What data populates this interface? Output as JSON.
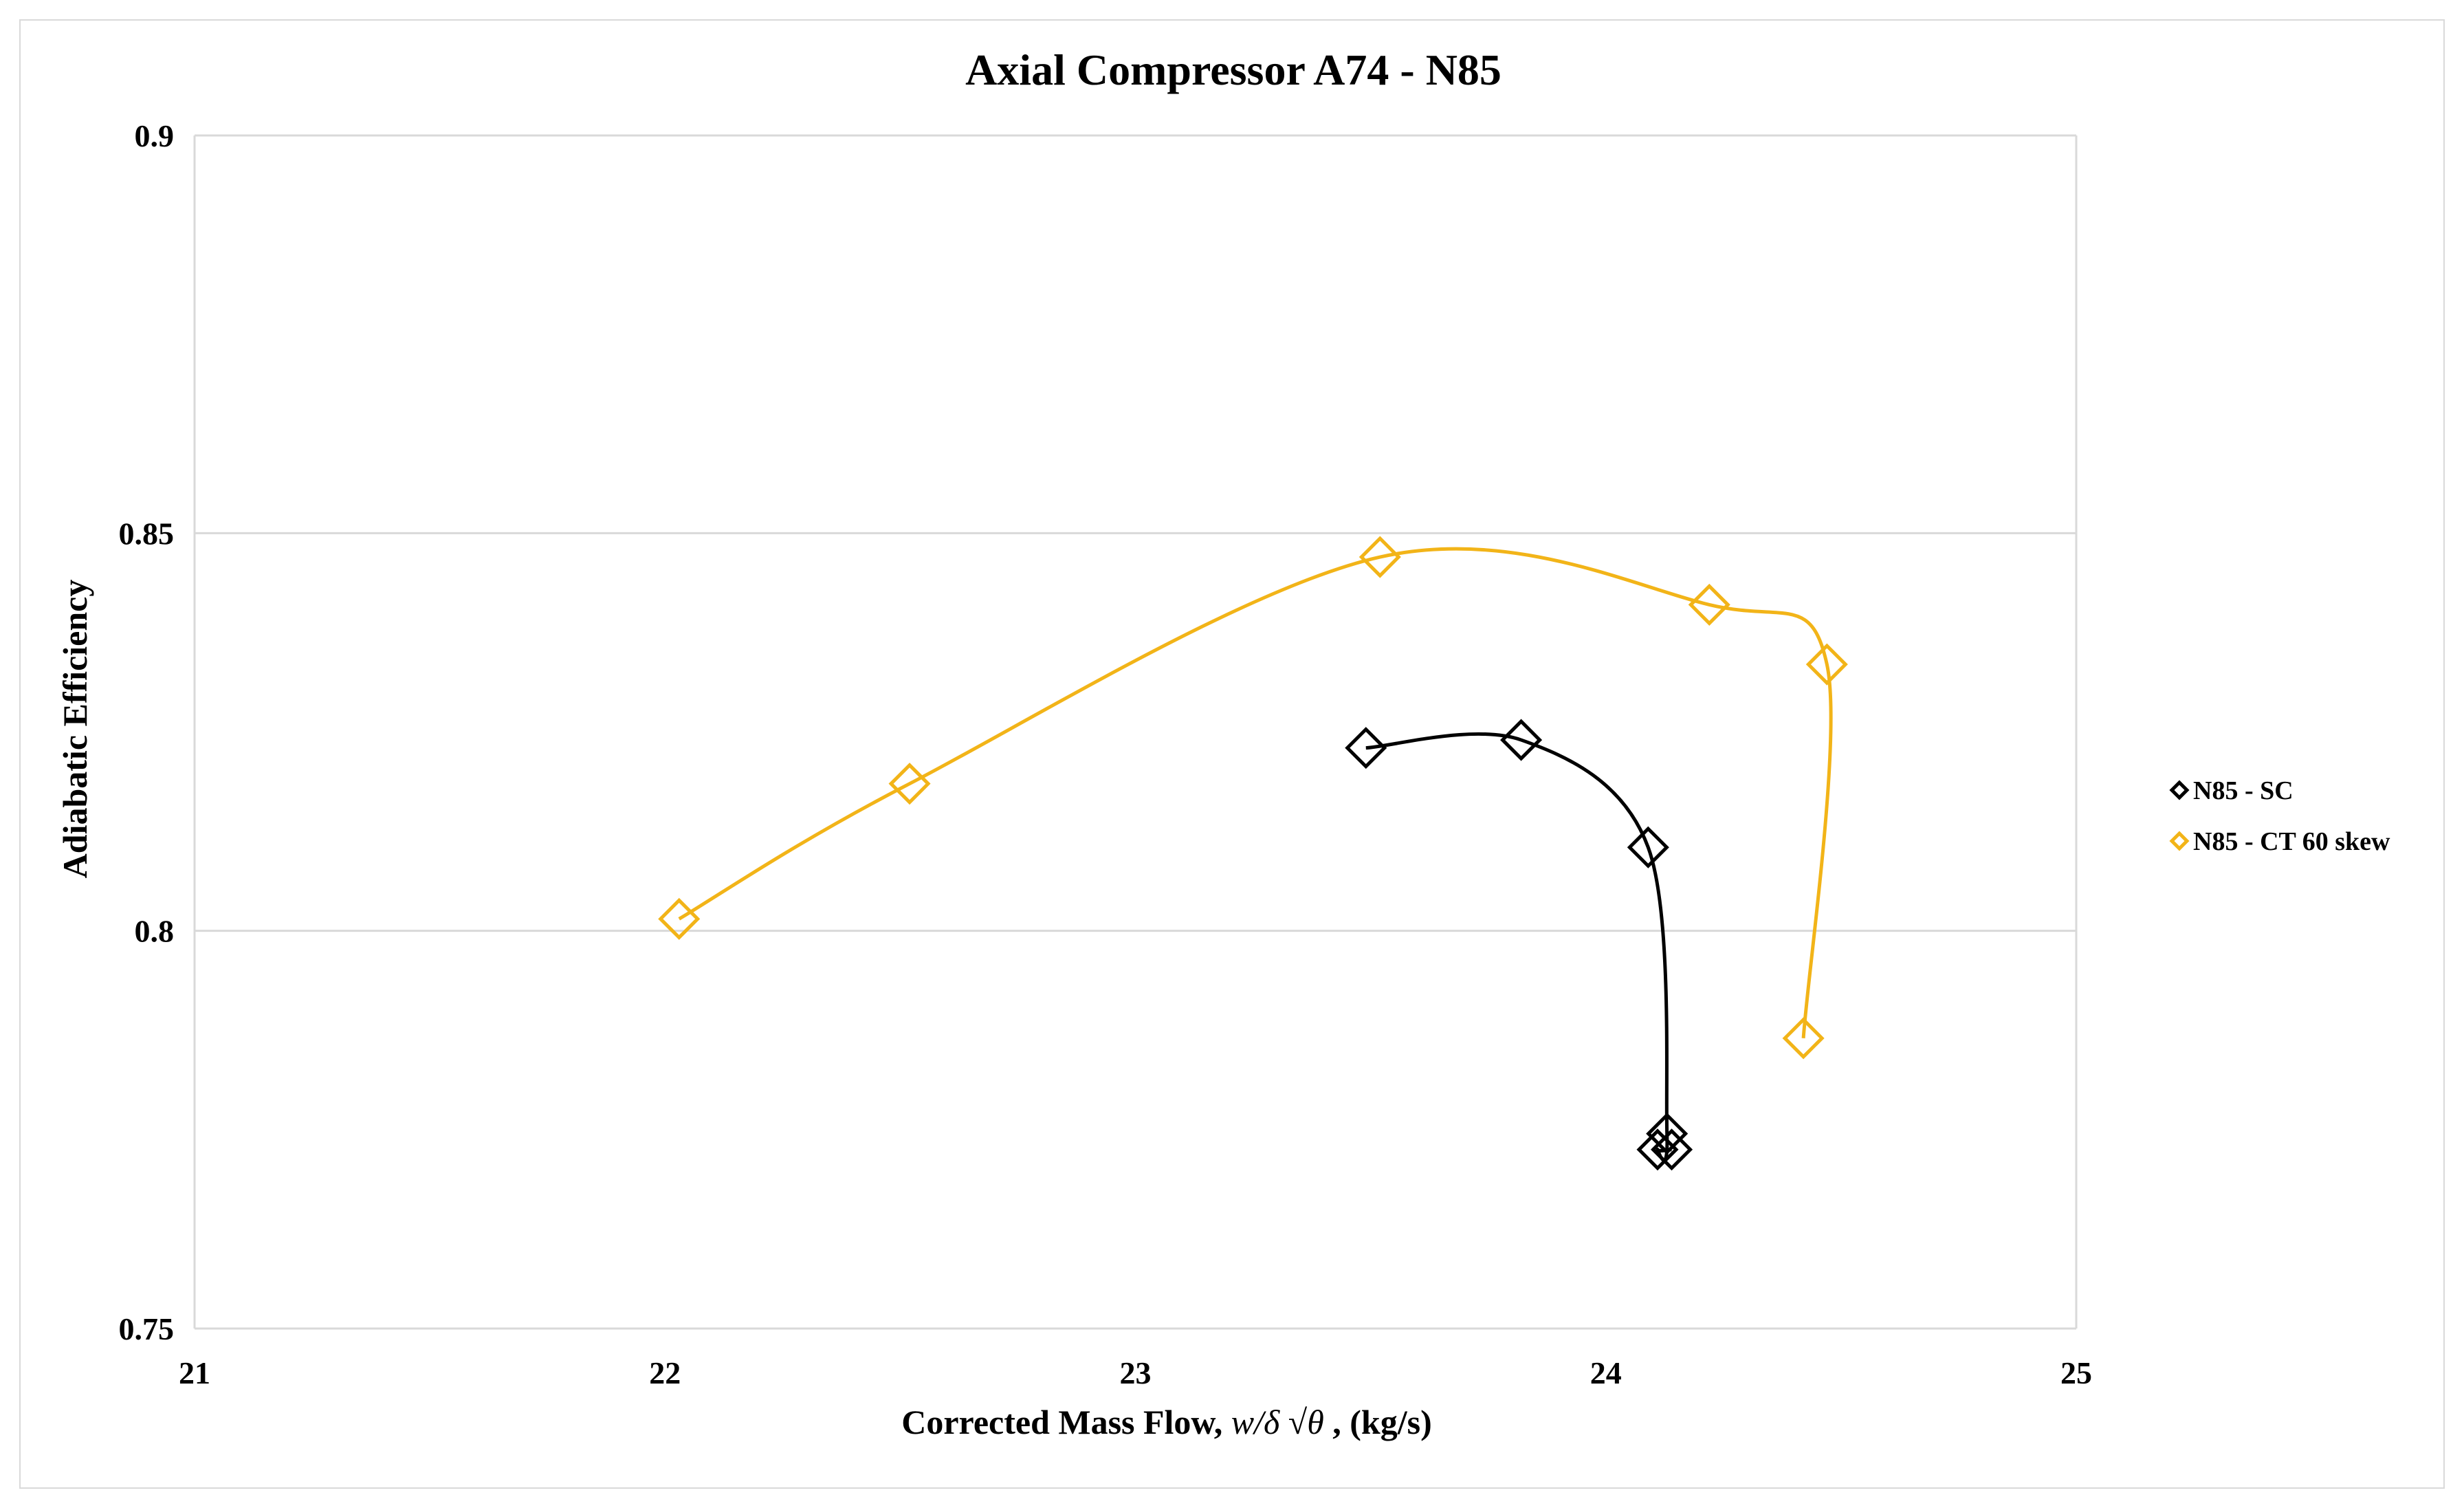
{
  "chart_data": {
    "type": "scatter",
    "title": "Axial Compressor A74 - N85",
    "xlabel_prefix": "Corrected Mass Flow, ",
    "xlabel_math": "w/δ √θ",
    "xlabel_suffix": " , (kg/s)",
    "ylabel": "Adiabatic Efficiency",
    "xlim": [
      21,
      25
    ],
    "ylim": [
      0.75,
      0.9
    ],
    "x_ticks": [
      "21",
      "22",
      "23",
      "24",
      "25"
    ],
    "y_ticks": [
      "0.75",
      "0.8",
      "0.85",
      "0.9"
    ],
    "grid": "horizontal",
    "legend_position": "right",
    "series": [
      {
        "name": "N85 - SC",
        "color": "#000000",
        "marker": "diamond",
        "line": "smooth",
        "points": [
          {
            "x": 23.49,
            "y": 0.823
          },
          {
            "x": 23.82,
            "y": 0.824
          },
          {
            "x": 24.09,
            "y": 0.8105
          },
          {
            "x": 24.13,
            "y": 0.7745
          },
          {
            "x": 24.11,
            "y": 0.7725
          },
          {
            "x": 24.14,
            "y": 0.7725
          }
        ]
      },
      {
        "name": "N85 - CT 60 skew",
        "color": "#f2b418",
        "marker": "diamond",
        "line": "smooth",
        "points": [
          {
            "x": 22.03,
            "y": 0.8015
          },
          {
            "x": 22.52,
            "y": 0.8185
          },
          {
            "x": 23.52,
            "y": 0.847
          },
          {
            "x": 24.22,
            "y": 0.841
          },
          {
            "x": 24.47,
            "y": 0.8335
          },
          {
            "x": 24.42,
            "y": 0.7865
          }
        ]
      }
    ]
  }
}
